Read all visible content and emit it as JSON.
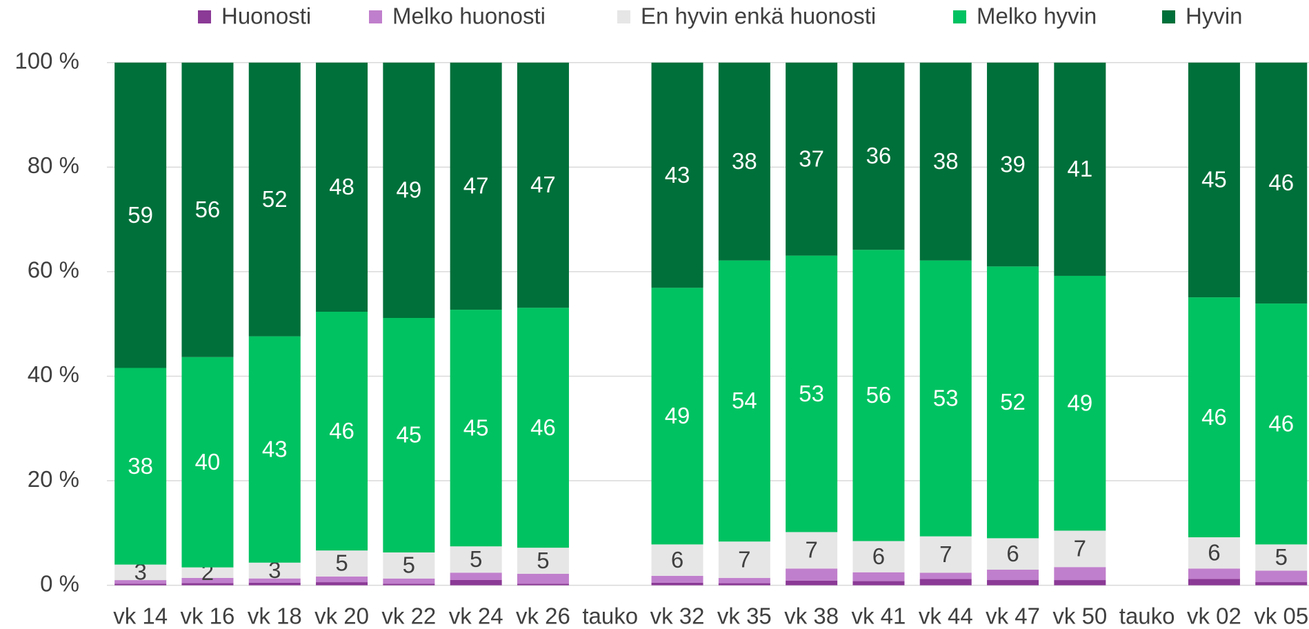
{
  "chart_data": {
    "type": "bar",
    "stacking": "percent",
    "categories": [
      "vk 14",
      "vk 16",
      "vk 18",
      "vk 20",
      "vk 22",
      "vk 24",
      "vk 26",
      "tauko",
      "vk 32",
      "vk 35",
      "vk 38",
      "vk 41",
      "vk 44",
      "vk 47",
      "vk 50",
      "tauko",
      "vk 02",
      "vk 05"
    ],
    "series": [
      {
        "name": "Huonosti",
        "color": "#8b3a96",
        "labels": false,
        "values": [
          0.3,
          0.4,
          0.5,
          0.6,
          0.3,
          1.0,
          0.3,
          null,
          0.5,
          0.4,
          0.9,
          0.8,
          1.2,
          1.0,
          1.0,
          null,
          1.2,
          0.6
        ]
      },
      {
        "name": "Melko huonosti",
        "color": "#c07fcc",
        "labels": false,
        "values": [
          0.7,
          1.0,
          0.8,
          1.1,
          1.0,
          1.4,
          1.9,
          null,
          1.3,
          1.0,
          2.3,
          1.7,
          1.2,
          2.0,
          2.5,
          null,
          2.0,
          2.2
        ]
      },
      {
        "name": "En hyvin enkä huonosti",
        "color": "#e6e6e6",
        "labels": true,
        "label_color": "#404040",
        "values": [
          3,
          2,
          3,
          5,
          5,
          5,
          5,
          null,
          6,
          7,
          7,
          6,
          7,
          6,
          7,
          null,
          6,
          5
        ]
      },
      {
        "name": "Melko hyvin",
        "color": "#00c261",
        "labels": true,
        "label_color": "#ffffff",
        "values": [
          38,
          40,
          43,
          46,
          45,
          45,
          46,
          null,
          49,
          54,
          53,
          56,
          53,
          52,
          49,
          null,
          46,
          46
        ]
      },
      {
        "name": "Hyvin",
        "color": "#00703a",
        "labels": true,
        "label_color": "#ffffff",
        "values": [
          59,
          56,
          52,
          48,
          49,
          47,
          47,
          null,
          43,
          38,
          37,
          36,
          38,
          39,
          41,
          null,
          45,
          46
        ]
      }
    ],
    "ylim": [
      0,
      100
    ],
    "yticks": [
      {
        "value": 0,
        "label": "0 %"
      },
      {
        "value": 20,
        "label": "20 %"
      },
      {
        "value": 40,
        "label": "40 %"
      },
      {
        "value": 60,
        "label": "60 %"
      },
      {
        "value": 80,
        "label": "80 %"
      },
      {
        "value": 100,
        "label": "100 %"
      }
    ],
    "grid": true,
    "legend": "top"
  }
}
